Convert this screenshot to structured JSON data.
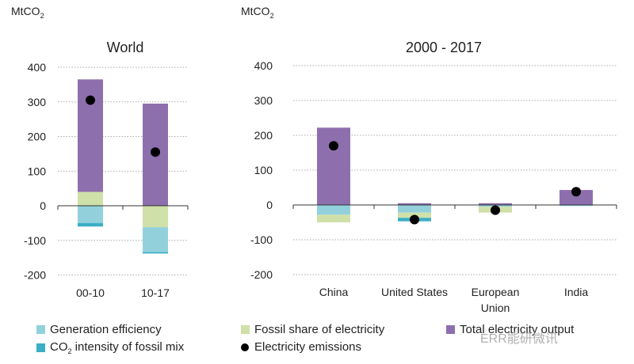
{
  "colors": {
    "generation_efficiency": "#92d1dc",
    "co2_intensity": "#3aaec5",
    "fossil_share": "#cfe0a8",
    "total_output": "#8e6fae",
    "emissions": "#000000"
  },
  "legend": {
    "generation_efficiency": "Generation efficiency",
    "co2_intensity_prefix": "CO",
    "co2_intensity_sub": "2",
    "co2_intensity_suffix": " intensity of fossil mix",
    "fossil_share": "Fossil share of electricity",
    "total_output": "Total electricity output",
    "emissions": "Electricity emissions"
  },
  "watermark": "ERR能研微讯",
  "chart_data": [
    {
      "type": "bar",
      "stacked": true,
      "title": "World",
      "ylabel_prefix": "MtCO",
      "ylabel_sub": "2",
      "ylim": [
        -200,
        400
      ],
      "yticks": [
        "400",
        "300",
        "200",
        "100",
        "0",
        "-100",
        "-200"
      ],
      "grid": true,
      "legend": "bottom",
      "categories": [
        "00-10",
        "10-17"
      ],
      "series": [
        {
          "name": "Fossil share of electricity",
          "key": "fossil_share",
          "values": [
            40,
            -62
          ]
        },
        {
          "name": "Total electricity output",
          "key": "total_output",
          "values": [
            325,
            295
          ]
        },
        {
          "name": "Generation efficiency",
          "key": "generation_efficiency",
          "values": [
            -50,
            -72
          ]
        },
        {
          "name": "CO2 intensity of fossil mix",
          "key": "co2_intensity",
          "values": [
            -10,
            -4
          ]
        }
      ],
      "emissions": {
        "name": "Electricity emissions",
        "values": [
          305,
          155
        ]
      }
    },
    {
      "type": "bar",
      "stacked": true,
      "title": "2000 - 2017",
      "ylabel_prefix": "MtCO",
      "ylabel_sub": "2",
      "ylim": [
        -200,
        400
      ],
      "yticks": [
        "400",
        "300",
        "200",
        "100",
        "0",
        "-100",
        "-200"
      ],
      "grid": true,
      "legend": "bottom",
      "categories": [
        "China",
        "United States",
        "European Union",
        "India"
      ],
      "category_lines": [
        [
          "China"
        ],
        [
          "United States"
        ],
        [
          "European",
          "Union"
        ],
        [
          "India"
        ]
      ],
      "series": [
        {
          "name": "Total electricity output",
          "key": "total_output",
          "values": [
            222,
            5,
            5,
            43
          ]
        },
        {
          "name": "Generation efficiency",
          "key": "generation_efficiency",
          "values": [
            -28,
            -22,
            -5,
            -3
          ]
        },
        {
          "name": "Fossil share of electricity",
          "key": "fossil_share",
          "values": [
            -22,
            -15,
            -17,
            0
          ]
        },
        {
          "name": "CO2 intensity of fossil mix",
          "key": "co2_intensity",
          "values": [
            0,
            -10,
            0,
            0
          ]
        }
      ],
      "emissions": {
        "name": "Electricity emissions",
        "values": [
          170,
          -42,
          -15,
          38
        ]
      }
    }
  ]
}
